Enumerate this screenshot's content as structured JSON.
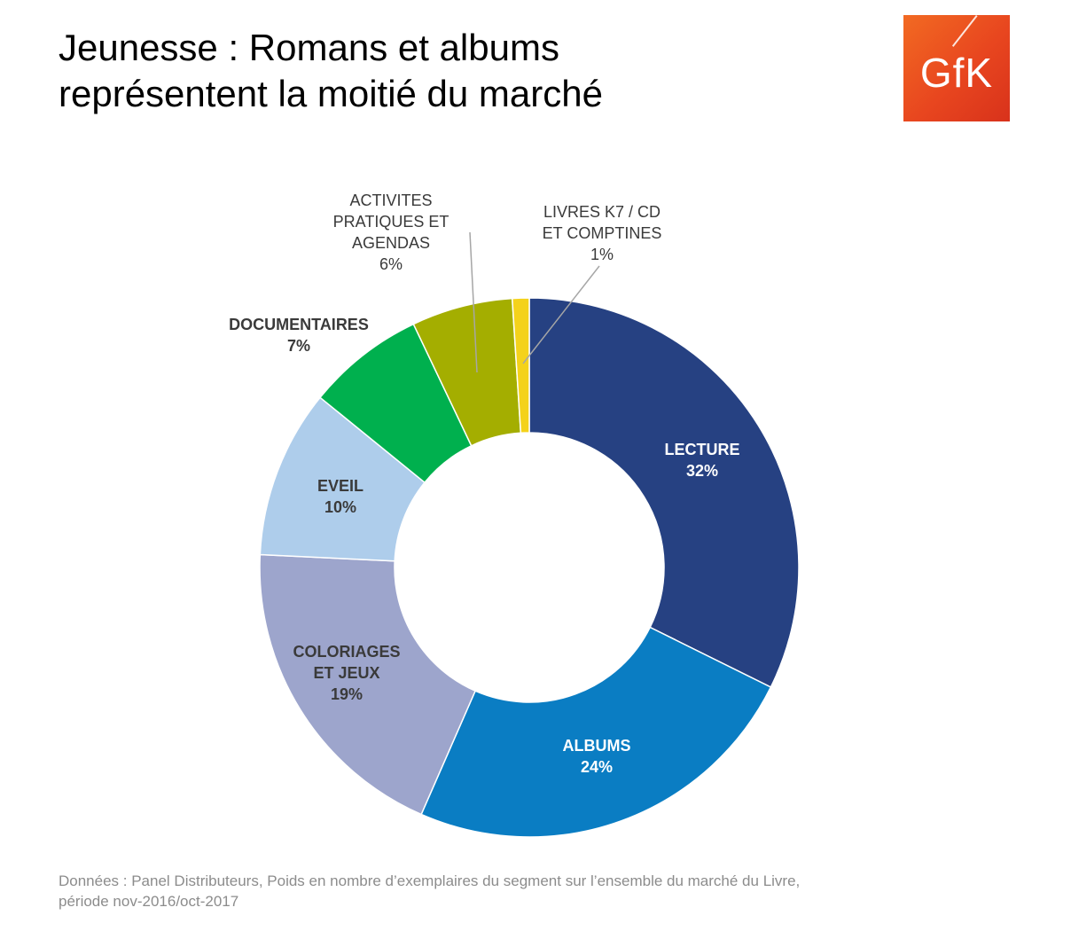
{
  "title": {
    "line1": "Jeunesse : Romans et albums",
    "line2": "représentent la moitié du marché"
  },
  "logo": {
    "text": "GfK",
    "icon": "gfk-logo"
  },
  "chart_data": {
    "type": "pie",
    "subtype": "donut",
    "slices": [
      {
        "label_lines": [
          "LECTURE"
        ],
        "value": 32,
        "value_label": "32%",
        "color": "#264182",
        "label_color": "#ffffff",
        "bold": true
      },
      {
        "label_lines": [
          "ALBUMS"
        ],
        "value": 24,
        "value_label": "24%",
        "color": "#0a7dc3",
        "label_color": "#ffffff",
        "bold": true
      },
      {
        "label_lines": [
          "COLORIAGES",
          "ET JEUX"
        ],
        "value": 19,
        "value_label": "19%",
        "color": "#9da5cc",
        "label_color": "#3a3a3a",
        "bold": true
      },
      {
        "label_lines": [
          "EVEIL"
        ],
        "value": 10,
        "value_label": "10%",
        "color": "#aecdeb",
        "label_color": "#3a3a3a",
        "bold": true
      },
      {
        "label_lines": [
          "DOCUMENTAIRES"
        ],
        "value": 7,
        "value_label": "7%",
        "color": "#00b04e",
        "label_color": "#3a3a3a",
        "bold": true
      },
      {
        "label_lines": [
          "ACTIVITES",
          "PRATIQUES ET",
          "AGENDAS"
        ],
        "value": 6,
        "value_label": "6%",
        "color": "#a4ae00",
        "label_color": "#3a3a3a",
        "bold": false
      },
      {
        "label_lines": [
          "LIVRES K7 / CD",
          "ET COMPTINES"
        ],
        "value": 1,
        "value_label": "1%",
        "color": "#f4d21b",
        "label_color": "#3a3a3a",
        "bold": false
      }
    ]
  },
  "footnote": {
    "line1": "Données : Panel Distributeurs, Poids en nombre d’exemplaires du segment sur l’ensemble du marché du Livre,",
    "line2": "période nov-2016/oct-2017"
  }
}
